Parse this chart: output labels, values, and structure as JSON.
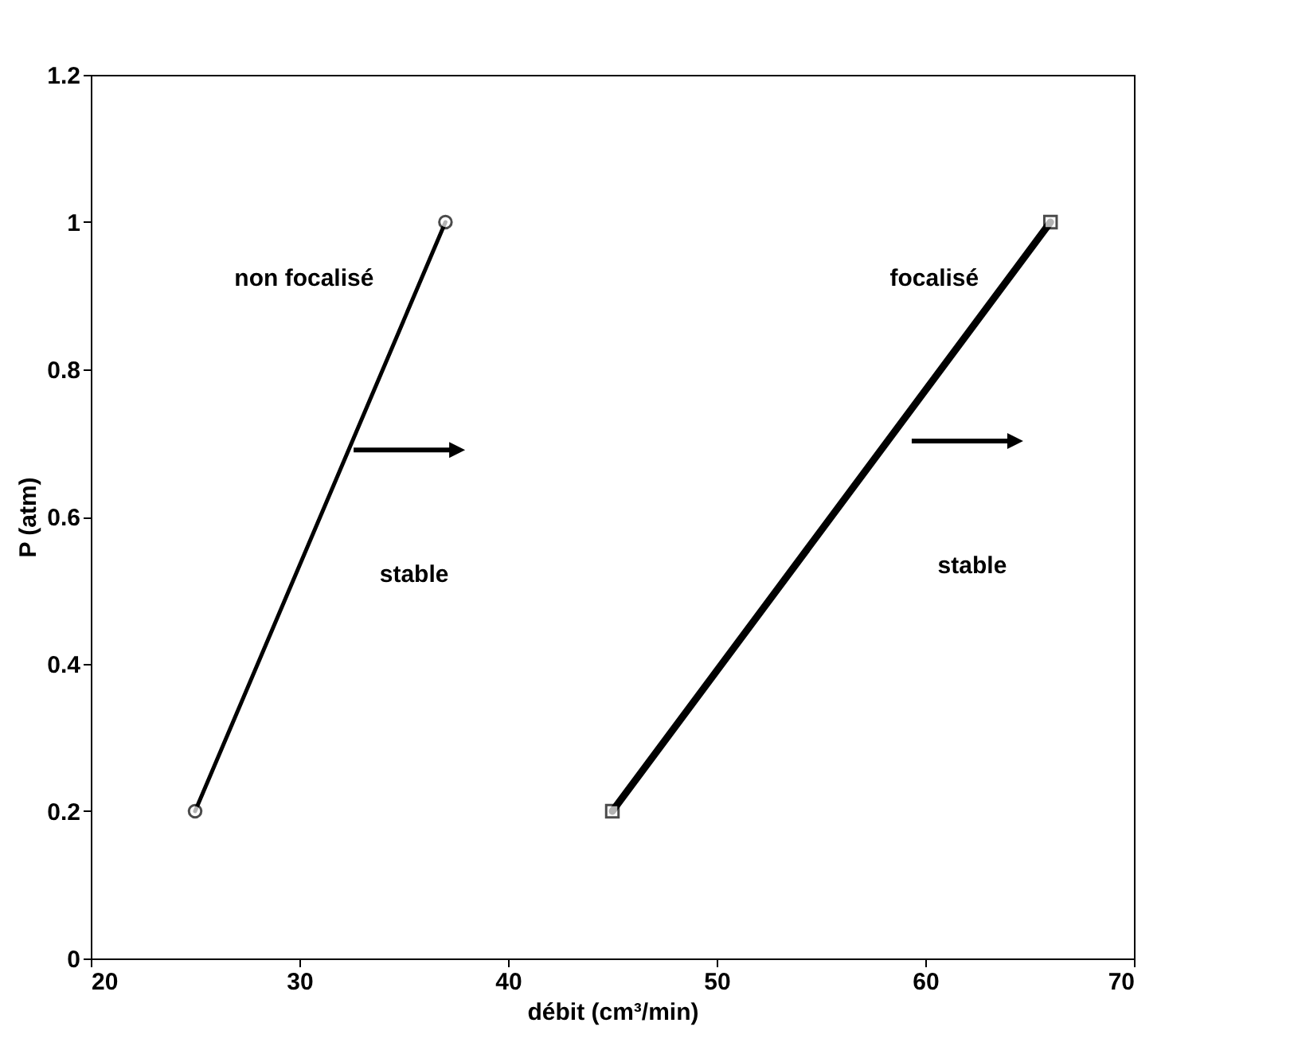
{
  "chart_data": {
    "type": "line",
    "xlabel": "débit (cm³/min)",
    "ylabel": "P (atm)",
    "xlim": [
      20,
      70
    ],
    "xticks": [
      20,
      30,
      40,
      50,
      60,
      70
    ],
    "ylim": [
      0,
      1.2
    ],
    "yticks": [
      0,
      0.2,
      0.4,
      0.6,
      0.8,
      1,
      1.2
    ],
    "grid": false,
    "line_style": "solid",
    "series": [
      {
        "name": "non focalisé",
        "color": "#000000",
        "marker": "circle",
        "x": [
          25,
          37
        ],
        "values": [
          0.2,
          1
        ]
      },
      {
        "name": "focalisé",
        "color": "#000000",
        "marker": "square",
        "x": [
          45,
          66
        ],
        "values": [
          0.2,
          1
        ]
      }
    ],
    "annotations": [
      "stable",
      "stable"
    ]
  }
}
